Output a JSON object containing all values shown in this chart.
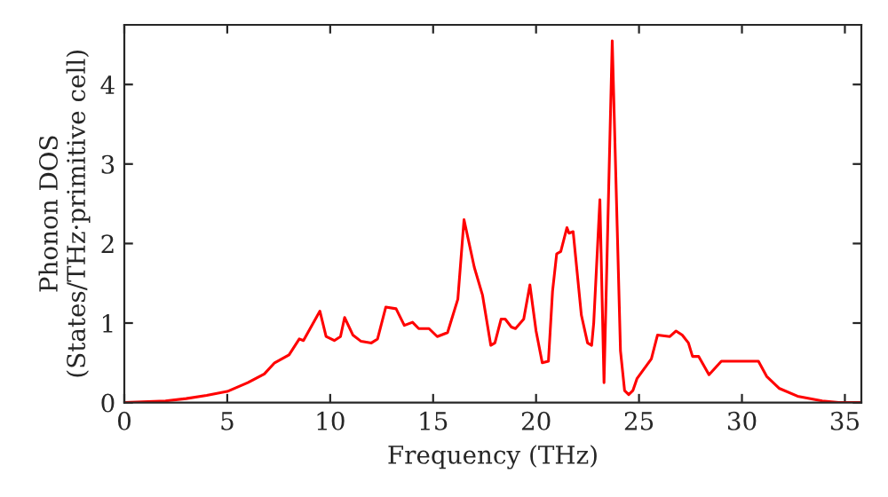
{
  "chart_data": {
    "type": "line",
    "xlabel": "Frequency (THz)",
    "ylabel": "Phonon DOS\n(States/THz·primitive cell)",
    "xlim": [
      0,
      35.8
    ],
    "ylim": [
      0,
      4.75
    ],
    "xticks": [
      0,
      5,
      10,
      15,
      20,
      25,
      30,
      35
    ],
    "yticks": [
      0,
      1,
      2,
      3,
      4
    ],
    "grid": false,
    "marker": "none",
    "line_style": "solid",
    "series": [
      {
        "color": "#ff0000",
        "x": [
          0,
          2,
          3,
          4,
          5,
          6,
          6.8,
          7.3,
          8,
          8.5,
          8.7,
          9.5,
          9.8,
          10.2,
          10.5,
          10.7,
          11.1,
          11.5,
          12,
          12.3,
          12.7,
          13.2,
          13.6,
          14,
          14.3,
          14.8,
          15.2,
          15.7,
          16.2,
          16.5,
          17,
          17.4,
          17.8,
          18,
          18.3,
          18.5,
          18.8,
          19,
          19.4,
          19.7,
          20,
          20.3,
          20.6,
          20.8,
          21,
          21.2,
          21.5,
          21.6,
          21.8,
          22.2,
          22.5,
          22.7,
          22.8,
          23.1,
          23.3,
          23.7,
          24.1,
          24.3,
          24.5,
          24.7,
          24.9,
          25.6,
          25.9,
          26.5,
          26.8,
          27.1,
          27.4,
          27.6,
          27.9,
          28.4,
          29,
          29.4,
          30.8,
          31.2,
          31.8,
          32.7,
          33.9,
          34.7,
          35.8
        ],
        "values": [
          0,
          0.02,
          0.05,
          0.09,
          0.14,
          0.25,
          0.36,
          0.5,
          0.6,
          0.8,
          0.78,
          1.15,
          0.83,
          0.78,
          0.83,
          1.07,
          0.85,
          0.77,
          0.75,
          0.8,
          1.2,
          1.18,
          0.97,
          1.01,
          0.93,
          0.93,
          0.83,
          0.88,
          1.3,
          2.3,
          1.7,
          1.35,
          0.72,
          0.75,
          1.05,
          1.05,
          0.95,
          0.93,
          1.05,
          1.48,
          0.9,
          0.5,
          0.52,
          1.4,
          1.87,
          1.9,
          2.2,
          2.13,
          2.15,
          1.1,
          0.75,
          0.72,
          1.0,
          2.55,
          0.25,
          4.55,
          0.65,
          0.15,
          0.1,
          0.15,
          0.3,
          0.55,
          0.85,
          0.83,
          0.9,
          0.85,
          0.75,
          0.58,
          0.58,
          0.35,
          0.52,
          0.52,
          0.52,
          0.33,
          0.18,
          0.08,
          0.02,
          0,
          0
        ]
      }
    ]
  }
}
